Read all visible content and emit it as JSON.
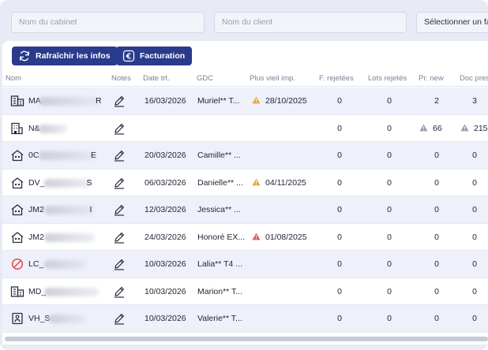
{
  "filters": {
    "cabinet_placeholder": "Nom du cabinet",
    "client_placeholder": "Nom du client",
    "select_label": "Sélectionner un fa"
  },
  "toolbar": {
    "refresh_label": "Rafraîchir les infos",
    "billing_label": "Facturation"
  },
  "columns": [
    "Nom",
    "Notes",
    "Date trt.",
    "GDC",
    "Plus vieil imp.",
    "F. rejetées",
    "Lots rejetés",
    "Pr. new",
    "Doc pres"
  ],
  "rows": [
    {
      "icon": "building-icon",
      "name_prefix": "MA",
      "name_suffix": "R",
      "date": "16/03/2026",
      "gdc": "Muriel** T...",
      "oldest": "28/10/2025",
      "oldest_level": "warning",
      "f_rejetees": "0",
      "lots_rejetes": "0",
      "pr_new": "2",
      "pr_new_warn": false,
      "doc_pres": "3",
      "doc_pres_warn": false
    },
    {
      "icon": "office-building-icon",
      "name_prefix": "N&",
      "name_suffix": "",
      "date": "",
      "gdc": "",
      "oldest": "",
      "oldest_level": "none",
      "f_rejetees": "0",
      "lots_rejetes": "0",
      "pr_new": "66",
      "pr_new_warn": true,
      "doc_pres": "215",
      "doc_pres_warn": true
    },
    {
      "icon": "house-icon",
      "name_prefix": "0C",
      "name_suffix": "E",
      "date": "20/03/2026",
      "gdc": "Camille** ...",
      "oldest": "",
      "oldest_level": "none",
      "f_rejetees": "0",
      "lots_rejetes": "0",
      "pr_new": "0",
      "pr_new_warn": false,
      "doc_pres": "0",
      "doc_pres_warn": false
    },
    {
      "icon": "house-icon",
      "name_prefix": "DV_",
      "name_suffix": "S",
      "date": "06/03/2026",
      "gdc": "Danielle** ...",
      "oldest": "04/11/2025",
      "oldest_level": "warning",
      "f_rejetees": "0",
      "lots_rejetes": "0",
      "pr_new": "0",
      "pr_new_warn": false,
      "doc_pres": "0",
      "doc_pres_warn": false
    },
    {
      "icon": "house-icon",
      "name_prefix": "JM2",
      "name_suffix": "I",
      "date": "12/03/2026",
      "gdc": "Jessica** ...",
      "oldest": "",
      "oldest_level": "none",
      "f_rejetees": "0",
      "lots_rejetes": "0",
      "pr_new": "0",
      "pr_new_warn": false,
      "doc_pres": "0",
      "doc_pres_warn": false
    },
    {
      "icon": "house-icon",
      "name_prefix": "JM2",
      "name_suffix": "",
      "date": "24/03/2026",
      "gdc": "Honoré EX...",
      "oldest": "01/08/2025",
      "oldest_level": "danger",
      "f_rejetees": "0",
      "lots_rejetes": "0",
      "pr_new": "0",
      "pr_new_warn": false,
      "doc_pres": "0",
      "doc_pres_warn": false
    },
    {
      "icon": "prohibited-icon",
      "name_prefix": "LC_",
      "name_suffix": "",
      "date": "10/03/2026",
      "gdc": "Lalia** T4 ...",
      "oldest": "",
      "oldest_level": "none",
      "f_rejetees": "0",
      "lots_rejetes": "0",
      "pr_new": "0",
      "pr_new_warn": false,
      "doc_pres": "0",
      "doc_pres_warn": false
    },
    {
      "icon": "building-icon",
      "name_prefix": "MD_",
      "name_suffix": "",
      "date": "10/03/2026",
      "gdc": "Marion** T...",
      "oldest": "",
      "oldest_level": "none",
      "f_rejetees": "0",
      "lots_rejetes": "0",
      "pr_new": "0",
      "pr_new_warn": false,
      "doc_pres": "0",
      "doc_pres_warn": false
    },
    {
      "icon": "house-person-icon",
      "name_prefix": "VH_S",
      "name_suffix": "",
      "date": "10/03/2026",
      "gdc": "Valerie** T...",
      "oldest": "",
      "oldest_level": "none",
      "f_rejetees": "0",
      "lots_rejetes": "0",
      "pr_new": "0",
      "pr_new_warn": false,
      "doc_pres": "0",
      "doc_pres_warn": false
    }
  ],
  "colors": {
    "primary": "#2a3a8c",
    "warning": "#f0a030",
    "danger": "#e25555",
    "muted_warn": "#9a9cab",
    "row_alt": "#eef0fa",
    "prohibited": "#e04a4a"
  }
}
